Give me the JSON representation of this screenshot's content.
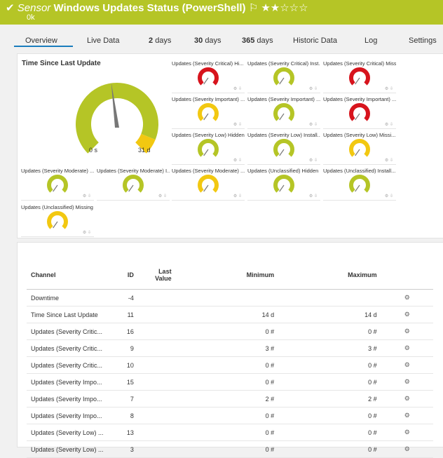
{
  "header": {
    "label": "Sensor",
    "title": "Windows Updates Status (PowerShell)",
    "status": "0k"
  },
  "tabs": [
    {
      "label": "Overview"
    },
    {
      "label": "Live Data"
    },
    {
      "number": "2",
      "label": "days"
    },
    {
      "number": "30",
      "label": "days"
    },
    {
      "number": "365",
      "label": "days"
    },
    {
      "label": "Historic Data"
    },
    {
      "label": "Log"
    },
    {
      "label": "Settings"
    }
  ],
  "main_gauge": {
    "title": "Time Since Last Update",
    "min_label": "0 s",
    "max_label": "31 d"
  },
  "gauges": [
    {
      "title": "Updates (Severity Critical) Hi...",
      "color": "#d7141d"
    },
    {
      "title": "Updates (Severity Critical) Inst...",
      "color": "#b5c526"
    },
    {
      "title": "Updates (Severity Critical) Missi...",
      "color": "#d7141d"
    },
    {
      "title": "Updates (Severity Important) ...",
      "color": "#f2c811"
    },
    {
      "title": "Updates (Severity Important) ...",
      "color": "#b5c526"
    },
    {
      "title": "Updates (Severity Important) ...",
      "color": "#d7141d"
    },
    {
      "title": "Updates (Severity Low) Hidden",
      "color": "#b5c526"
    },
    {
      "title": "Updates (Severity Low) Install...",
      "color": "#b5c526"
    },
    {
      "title": "Updates (Severity Low) Missi...",
      "color": "#f2c811"
    },
    {
      "title": "Updates (Severity Moderate) ...",
      "color": "#b5c526"
    },
    {
      "title": "Updates (Severity Moderate) I...",
      "color": "#b5c526"
    },
    {
      "title": "Updates (Severity Moderate) ...",
      "color": "#f2c811"
    },
    {
      "title": "Updates (Unclassified) Hidden",
      "color": "#b5c526"
    },
    {
      "title": "Updates (Unclassified) Install...",
      "color": "#b5c526"
    },
    {
      "title": "Updates (Unclassified) Missing",
      "color": "#f2c811"
    }
  ],
  "table": {
    "columns": [
      "Channel",
      "ID",
      "Last Value",
      "Minimum",
      "Maximum"
    ],
    "rows": [
      {
        "channel": "Downtime",
        "id": -4
      },
      {
        "channel": "Time Since Last Update",
        "id": 11,
        "minimum": "14 d",
        "maximum": "14 d"
      },
      {
        "channel": "Updates (Severity Critic...",
        "id": 16,
        "minimum": "0 #",
        "maximum": "0 #"
      },
      {
        "channel": "Updates (Severity Critic...",
        "id": 9,
        "minimum": "3 #",
        "maximum": "3 #"
      },
      {
        "channel": "Updates (Severity Critic...",
        "id": 10,
        "minimum": "0 #",
        "maximum": "0 #"
      },
      {
        "channel": "Updates (Severity Impo...",
        "id": 15,
        "minimum": "0 #",
        "maximum": "0 #"
      },
      {
        "channel": "Updates (Severity Impo...",
        "id": 7,
        "minimum": "2 #",
        "maximum": "2 #"
      },
      {
        "channel": "Updates (Severity Impo...",
        "id": 8,
        "minimum": "0 #",
        "maximum": "0 #"
      },
      {
        "channel": "Updates (Severity Low) ...",
        "id": 13,
        "minimum": "0 #",
        "maximum": "0 #"
      },
      {
        "channel": "Updates (Severity Low) ...",
        "id": 3,
        "minimum": "0 #",
        "maximum": "0 #"
      }
    ]
  }
}
